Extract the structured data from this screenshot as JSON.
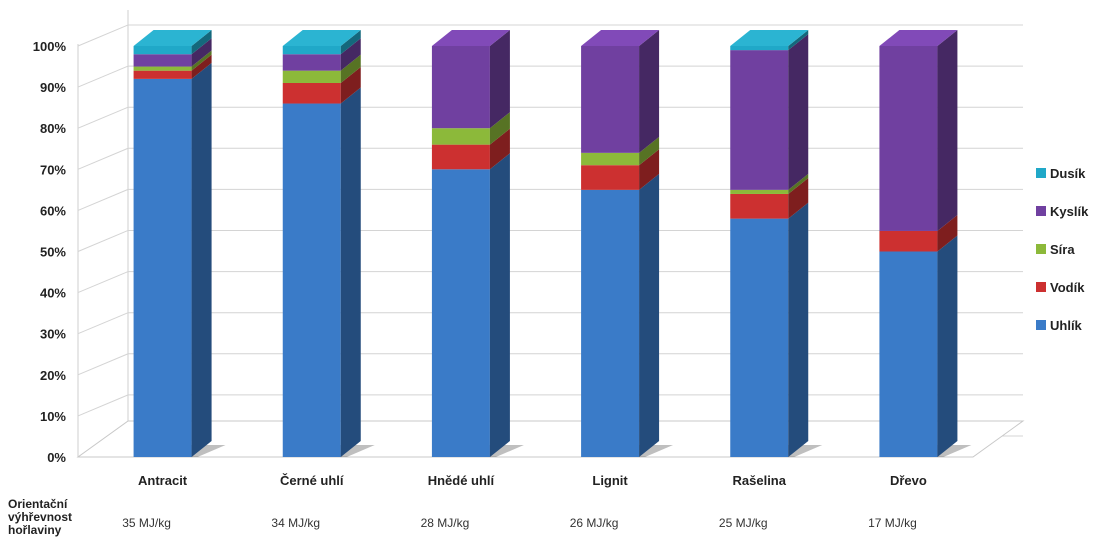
{
  "chart_data": {
    "type": "bar",
    "stacked": true,
    "percent": true,
    "three_d": true,
    "categories": [
      "Antracit",
      "Černé uhlí",
      "Hnědé uhlí",
      "Lignit",
      "Rašelina",
      "Dřevo"
    ],
    "y_ticks": [
      "0%",
      "10%",
      "20%",
      "30%",
      "40%",
      "50%",
      "60%",
      "70%",
      "80%",
      "90%",
      "100%"
    ],
    "ylim": [
      0,
      100
    ],
    "grid": true,
    "legend_position": "right",
    "series": [
      {
        "name": "Uhlík",
        "color": "#3a7bc8",
        "values": [
          92,
          86,
          70,
          65,
          58,
          50
        ]
      },
      {
        "name": "Vodík",
        "color": "#cc3030",
        "values": [
          2,
          5,
          6,
          6,
          6,
          5
        ]
      },
      {
        "name": "Síra",
        "color": "#8cb93a",
        "values": [
          1,
          3,
          4,
          3,
          1,
          0
        ]
      },
      {
        "name": "Kyslík",
        "color": "#7040a0",
        "values": [
          3,
          4,
          20,
          26,
          34,
          45
        ]
      },
      {
        "name": "Dusík",
        "color": "#20a8c8",
        "values": [
          2,
          2,
          0,
          0,
          1,
          0
        ]
      }
    ]
  },
  "fuel_row": {
    "label": "Orientační výhřevnost hořlaviny",
    "values": [
      "35 MJ/kg",
      "34 MJ/kg",
      "28 MJ/kg",
      "26 MJ/kg",
      "25 MJ/kg",
      "17 MJ/kg"
    ]
  }
}
